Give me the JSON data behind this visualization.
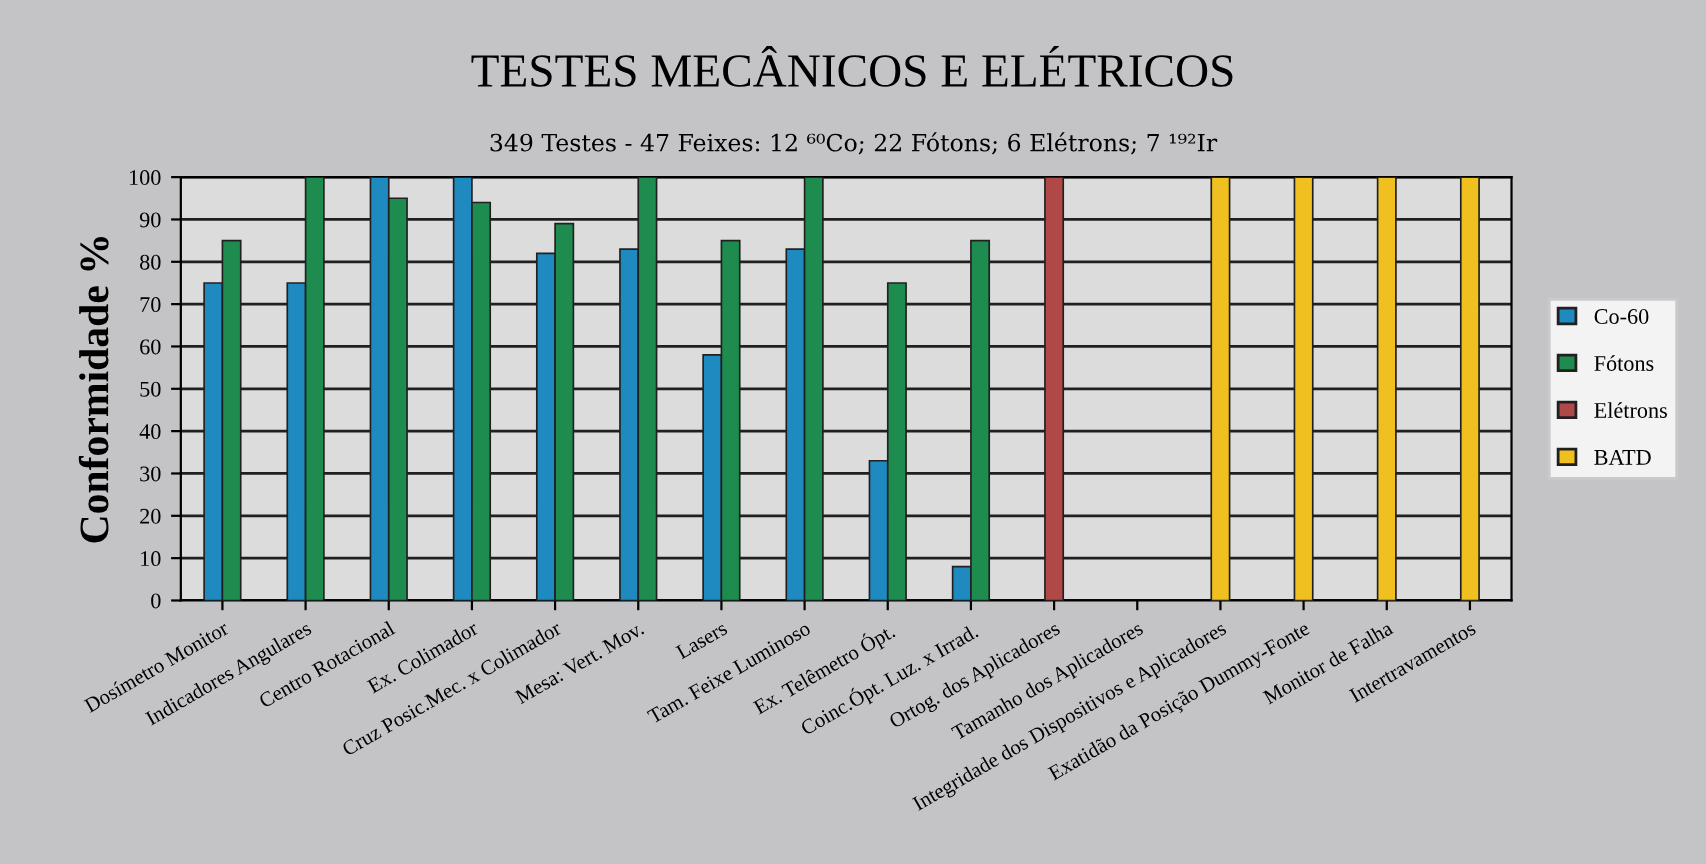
{
  "chart_data": {
    "type": "bar",
    "title": "TESTES MECÂNICOS E ELÉTRICOS",
    "subtitle": "349 Testes - 47 Feixes: 12 ⁶⁰Co; 22 Fótons; 6 Elétrons; 7 ¹⁹²Ir",
    "ylabel": "Conformidade %",
    "categories": [
      "Dosímetro Monitor",
      "Indicadores Angulares",
      "Centro Rotacional",
      "Ex. Colimador",
      "Cruz Posic.Mec. x Colimador",
      "Mesa: Vert. Mov.",
      "Lasers",
      "Tam. Feixe Luminoso",
      "Ex. Telêmetro Ópt.",
      "Coinc.Ópt. Luz. x Irrad.",
      "Ortog. dos Aplicadores",
      "Tamanho dos Aplicadores",
      "Integridade dos Dispositivos e Aplicadores",
      "Exatidão da Posição Dummy-Fonte",
      "Monitor de Falha",
      "Intertravamentos"
    ],
    "series": [
      {
        "name": "Co-60",
        "color": "#1f8ac0",
        "values": [
          75,
          75,
          100,
          100,
          82,
          83,
          58,
          83,
          33,
          8,
          null,
          null,
          null,
          null,
          null,
          null
        ]
      },
      {
        "name": "Fótons",
        "color": "#1e8c4e",
        "values": [
          85,
          100,
          95,
          94,
          89,
          100,
          85,
          100,
          75,
          85,
          null,
          null,
          null,
          null,
          null,
          null
        ]
      },
      {
        "name": "Elétrons",
        "color": "#b04848",
        "values": [
          null,
          null,
          null,
          null,
          null,
          null,
          null,
          null,
          null,
          null,
          100,
          null,
          null,
          null,
          null,
          null
        ]
      },
      {
        "name": "BATD",
        "color": "#f0c020",
        "values": [
          null,
          null,
          null,
          null,
          null,
          null,
          null,
          null,
          null,
          null,
          null,
          null,
          100,
          100,
          100,
          100
        ]
      }
    ],
    "ylim": [
      0,
      100
    ],
    "yticks": [
      0,
      10,
      20,
      30,
      40,
      50,
      60,
      70,
      80,
      90,
      100
    ],
    "grid": "y",
    "legend": "right"
  }
}
